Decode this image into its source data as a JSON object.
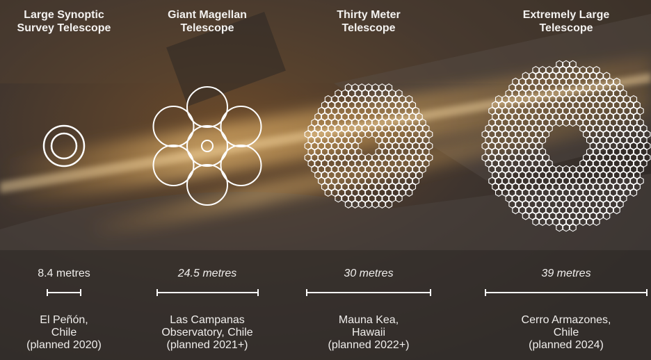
{
  "telescopes": [
    {
      "name": "Large Synoptic\nSurvey Telescope",
      "diameter": "8.4 metres",
      "diameter_m": 8.4,
      "location": "El Peñón,\nChile\n(planned 2020)"
    },
    {
      "name": "Giant Magellan\nTelescope",
      "diameter": "24.5 metres",
      "diameter_m": 24.5,
      "location": "Las Campanas\nObservatory, Chile\n(planned 2021+)"
    },
    {
      "name": "Thirty Meter\nTelescope",
      "diameter": "30 metres",
      "diameter_m": 30,
      "location": "Mauna Kea,\nHawaii\n(planned 2022+)"
    },
    {
      "name": "Extremely Large\nTelescope",
      "diameter": "39 metres",
      "diameter_m": 39,
      "location": "Cerro Armazones,\nChile\n(planned 2024)"
    }
  ],
  "colors": {
    "mirror_outline": "#ffffff",
    "laser_glow": "#ffb347",
    "background": "#3a3430"
  }
}
